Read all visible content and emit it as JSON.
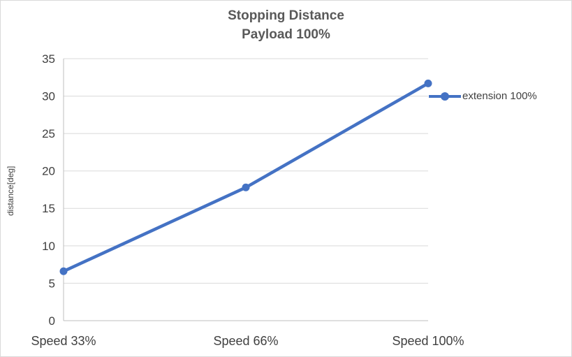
{
  "chart": {
    "title_line1": "Stopping Distance",
    "title_line2": "Payload 100%",
    "y_axis_title": "distance[deg]",
    "legend_label": "extension 100%"
  },
  "chart_data": {
    "type": "line",
    "title": "Stopping Distance Payload 100%",
    "categories": [
      "Speed 33%",
      "Speed 66%",
      "Speed 100%"
    ],
    "series": [
      {
        "name": "extension 100%",
        "values": [
          6.6,
          17.8,
          31.7
        ],
        "color": "#4472C4"
      }
    ],
    "xlabel": "",
    "ylabel": "distance[deg]",
    "ylim": [
      0,
      35
    ],
    "y_tick_step": 5,
    "grid": true,
    "legend_position": "right",
    "colors": {
      "series": "#4472C4",
      "gridline": "#d9d9d9",
      "axis_line": "#bfbfbf",
      "tick_text": "#404040"
    }
  }
}
